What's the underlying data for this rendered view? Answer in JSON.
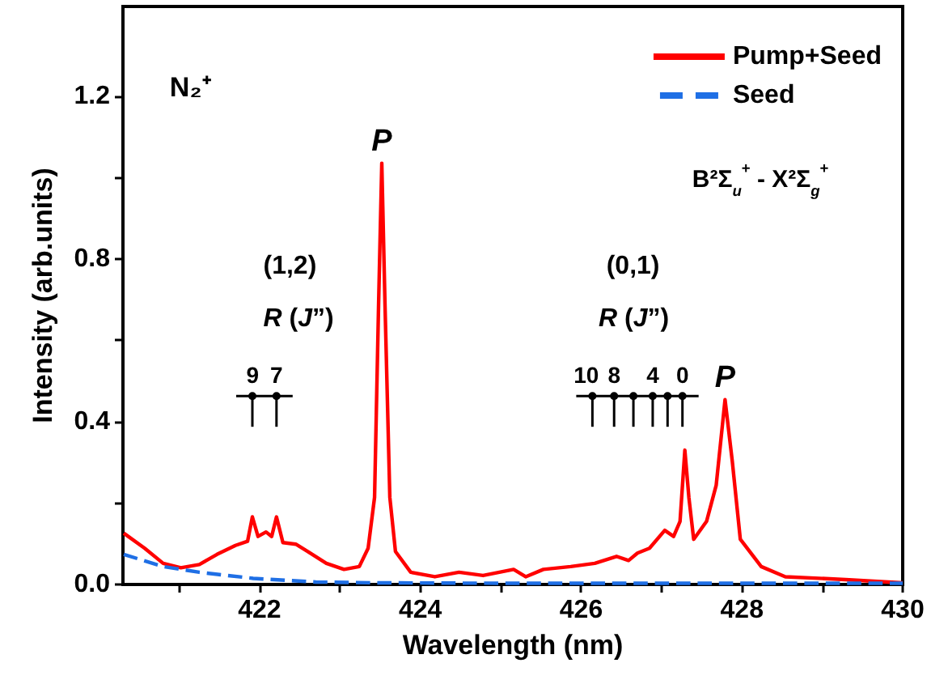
{
  "chart_data": {
    "type": "line",
    "xlabel": "Wavelength (nm)",
    "ylabel": "Intensity (arb.units)",
    "xlim": [
      420.3,
      430
    ],
    "xticks": [
      {
        "value": 421,
        "label": null
      },
      422,
      {
        "value": 423,
        "label": null
      },
      424,
      {
        "value": 425,
        "label": null
      },
      426,
      {
        "value": 427,
        "label": null
      },
      428,
      {
        "value": 429,
        "label": null
      },
      430
    ],
    "ylim": [
      0,
      1.42
    ],
    "yticks": [
      {
        "value": 0,
        "label": "0.0"
      },
      {
        "value": 0.2,
        "label": null
      },
      {
        "value": 0.4,
        "label": "0.4"
      },
      {
        "value": 0.6,
        "label": null
      },
      {
        "value": 0.8,
        "label": "0.8"
      },
      {
        "value": 1.0,
        "label": null
      },
      {
        "value": 1.2,
        "label": "1.2"
      }
    ],
    "grid": false,
    "legend": "top right",
    "marker": "none",
    "series": [
      {
        "name": "Pump+Seed",
        "color": "#ff0000",
        "line_style": "solid",
        "x": [
          420.31,
          420.57,
          420.8,
          421.02,
          421.25,
          421.47,
          421.7,
          421.85,
          421.91,
          421.98,
          422.08,
          422.15,
          422.21,
          422.29,
          422.45,
          422.6,
          422.83,
          423.05,
          423.24,
          423.35,
          423.43,
          423.48,
          423.52,
          423.56,
          423.62,
          423.69,
          423.88,
          424.18,
          424.48,
          424.78,
          425.16,
          425.31,
          425.53,
          425.87,
          426.17,
          426.44,
          426.59,
          426.7,
          426.85,
          427.04,
          427.15,
          427.23,
          427.29,
          427.34,
          427.4,
          427.56,
          427.68,
          427.79,
          427.88,
          427.98,
          428.24,
          428.54,
          429.29,
          430
        ],
        "values": [
          0.126,
          0.089,
          0.052,
          0.041,
          0.049,
          0.074,
          0.096,
          0.106,
          0.166,
          0.118,
          0.129,
          0.118,
          0.166,
          0.103,
          0.099,
          0.081,
          0.052,
          0.037,
          0.044,
          0.089,
          0.214,
          0.687,
          1.035,
          0.687,
          0.214,
          0.081,
          0.03,
          0.019,
          0.03,
          0.022,
          0.037,
          0.019,
          0.037,
          0.044,
          0.052,
          0.069,
          0.059,
          0.077,
          0.089,
          0.133,
          0.118,
          0.155,
          0.33,
          0.214,
          0.111,
          0.155,
          0.244,
          0.454,
          0.303,
          0.111,
          0.044,
          0.019,
          0.012,
          0.004
        ]
      },
      {
        "name": "Seed",
        "color": "#1f6fe5",
        "line_style": "dashed",
        "x": [
          420.31,
          420.8,
          421.25,
          421.92,
          422.7,
          423.5,
          425,
          427,
          430
        ],
        "values": [
          0.074,
          0.044,
          0.03,
          0.015,
          0.006,
          0.004,
          0.003,
          0.003,
          0.003
        ]
      }
    ],
    "annotations": [
      "N₂⁺",
      {
        "text": "P",
        "x": 423.52,
        "y": 1.035
      },
      {
        "text": "P",
        "x": 427.79,
        "y": 0.454
      },
      "B²Σ$_{u}$$^{+}$ - X²Σ$_{g}$$^{+}$",
      "(1,2)",
      "R (J”)",
      "(0,1)",
      "R (J”)",
      {
        "text": "9",
        "x": 421.91,
        "y": 0.463
      },
      {
        "text": "7",
        "x": 422.21,
        "y": 0.463
      },
      {
        "text": "10",
        "x": 426.14,
        "y": 0.463
      },
      {
        "text": "8",
        "x": 426.41,
        "y": 0.463
      },
      {
        "text": "4",
        "x": 426.89,
        "y": 0.463
      },
      {
        "text": "0",
        "x": 427.26,
        "y": 0.463
      }
    ]
  }
}
